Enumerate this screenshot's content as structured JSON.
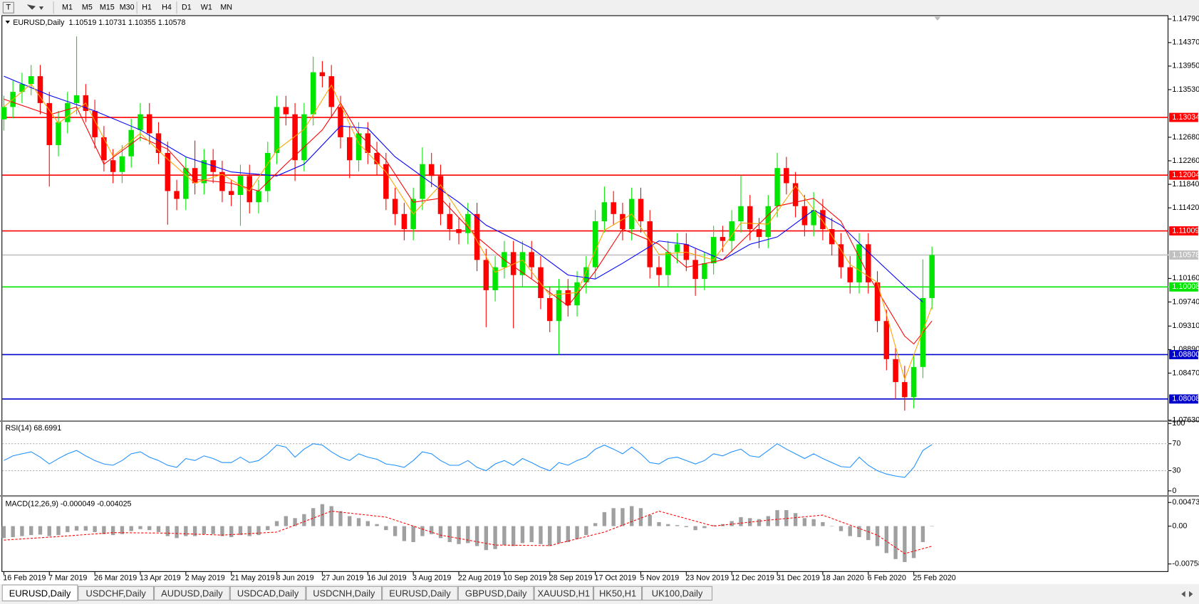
{
  "toolbar": {
    "timeframes": [
      "M1",
      "M5",
      "M15",
      "M30",
      "H1",
      "H4",
      "D1",
      "W1",
      "MN"
    ]
  },
  "tabs": [
    "EURUSD,Daily",
    "USDCHF,Daily",
    "AUDUSD,Daily",
    "USDCAD,Daily",
    "USDCNH,Daily",
    "EURUSD,Daily",
    "GBPUSD,Daily",
    "XAUUSD,H1",
    "HK50,H1",
    "UK100,Daily"
  ],
  "active_tab": 0,
  "chart_data": [
    {
      "type": "candlestick",
      "header": {
        "symbol": "EURUSD,Daily",
        "ohlc": [
          1.10519,
          1.10731,
          1.10355,
          1.10578
        ]
      },
      "categories": [
        "16 Feb 2019",
        null,
        null,
        null,
        null,
        "7 Mar 2019",
        null,
        null,
        null,
        null,
        "26 Mar 2019",
        null,
        null,
        null,
        null,
        "13 Apr 2019",
        null,
        null,
        null,
        null,
        "2 May 2019",
        null,
        null,
        null,
        null,
        "21 May 2019",
        null,
        null,
        null,
        null,
        "8 Jun 2019",
        null,
        null,
        null,
        null,
        "27 Jun 2019",
        null,
        null,
        null,
        null,
        "16 Jul 2019",
        null,
        null,
        null,
        null,
        "3 Aug 2019",
        null,
        null,
        null,
        null,
        "22 Aug 2019",
        null,
        null,
        null,
        null,
        "10 Sep 2019",
        null,
        null,
        null,
        null,
        "28 Sep 2019",
        null,
        null,
        null,
        null,
        "17 Oct 2019",
        null,
        null,
        null,
        null,
        "5 Nov 2019",
        null,
        null,
        null,
        null,
        "23 Nov 2019",
        null,
        null,
        null,
        null,
        "12 Dec 2019",
        null,
        null,
        null,
        null,
        "31 Dec 2019",
        null,
        null,
        null,
        null,
        "18 Jan 2020",
        null,
        null,
        null,
        null,
        "6 Feb 2020",
        null,
        null,
        null,
        null,
        "25 Feb 2020",
        null,
        null
      ],
      "open": [
        1.13,
        1.1322,
        1.1349,
        1.1363,
        1.1377,
        1.1329,
        1.1254,
        1.1295,
        1.1329,
        1.1343,
        1.1315,
        1.1268,
        1.1227,
        1.1206,
        1.1234,
        1.1281,
        1.1309,
        1.1275,
        1.124,
        1.1172,
        1.1158,
        1.1213,
        1.1186,
        1.1227,
        1.1206,
        1.1172,
        1.1165,
        1.1199,
        1.1152,
        1.1172,
        1.124,
        1.1322,
        1.1309,
        1.1227,
        1.1309,
        1.1384,
        1.1377,
        1.1322,
        1.1268,
        1.1227,
        1.1275,
        1.124,
        1.122,
        1.1158,
        1.1131,
        1.1104,
        1.1158,
        1.122,
        1.1199,
        1.1131,
        1.1104,
        1.1097,
        1.1131,
        1.1049,
        1.0995,
        1.1036,
        1.1063,
        1.1022,
        1.1063,
        1.1036,
        1.0981,
        1.094,
        1.0995,
        1.0968,
        1.1009,
        1.1036,
        1.1118,
        1.1152,
        1.1131,
        1.1104,
        1.1158,
        1.1118,
        1.1036,
        1.1022,
        1.1063,
        1.1077,
        1.1049,
        1.1015,
        1.1043,
        1.109,
        1.1083,
        1.1118,
        1.1145,
        1.1104,
        1.109,
        1.1145,
        1.1213,
        1.1186,
        1.1145,
        1.1111,
        1.1138,
        1.1104,
        1.1077,
        1.1036,
        1.1009,
        1.1077,
        1.1009,
        1.094,
        1.0872,
        1.0831,
        1.0804,
        1.0858,
        1.0981
      ],
      "high": [
        1.1342,
        1.1369,
        1.1383,
        1.1397,
        1.1397,
        1.1349,
        1.1315,
        1.1349,
        1.1448,
        1.1363,
        1.1335,
        1.1288,
        1.1247,
        1.1254,
        1.1301,
        1.1329,
        1.1329,
        1.1295,
        1.126,
        1.1192,
        1.1233,
        1.1262,
        1.1247,
        1.1247,
        1.1226,
        1.1192,
        1.1219,
        1.1219,
        1.1192,
        1.126,
        1.1342,
        1.1342,
        1.1329,
        1.1329,
        1.1412,
        1.1404,
        1.1397,
        1.1342,
        1.1288,
        1.1295,
        1.1295,
        1.126,
        1.124,
        1.1178,
        1.1151,
        1.1178,
        1.125,
        1.124,
        1.1219,
        1.1151,
        1.1124,
        1.1151,
        1.1151,
        1.1069,
        1.1056,
        1.1083,
        1.1083,
        1.1083,
        1.1083,
        1.1056,
        1.1001,
        1.1015,
        1.1015,
        1.1029,
        1.1056,
        1.1138,
        1.118,
        1.1172,
        1.1151,
        1.1178,
        1.1178,
        1.1138,
        1.1056,
        1.1083,
        1.1097,
        1.1097,
        1.1069,
        1.1063,
        1.111,
        1.111,
        1.1138,
        1.12,
        1.1165,
        1.1124,
        1.1165,
        1.124,
        1.1233,
        1.1206,
        1.1165,
        1.117,
        1.1158,
        1.1124,
        1.1097,
        1.1056,
        1.1097,
        1.1097,
        1.1029,
        1.096,
        1.0892,
        1.086,
        1.0878,
        1.105,
        1.1073
      ],
      "low": [
        1.128,
        1.1302,
        1.1329,
        1.1343,
        1.1309,
        1.118,
        1.1234,
        1.1275,
        1.1309,
        1.1295,
        1.1248,
        1.1207,
        1.1186,
        1.1186,
        1.1214,
        1.1261,
        1.1255,
        1.122,
        1.1112,
        1.1138,
        1.1138,
        1.1166,
        1.1166,
        1.1186,
        1.1152,
        1.1145,
        1.111,
        1.1132,
        1.1132,
        1.1152,
        1.122,
        1.1289,
        1.119,
        1.1207,
        1.1289,
        1.1357,
        1.1302,
        1.1248,
        1.1195,
        1.1207,
        1.122,
        1.12,
        1.1138,
        1.1111,
        1.1084,
        1.1084,
        1.1138,
        1.1179,
        1.1111,
        1.1084,
        1.1077,
        1.1077,
        1.1029,
        1.0929,
        1.0975,
        1.1016,
        1.0927,
        1.1002,
        1.1016,
        1.0961,
        1.092,
        1.088,
        1.0948,
        1.0948,
        1.0989,
        1.1016,
        1.1098,
        1.1111,
        1.1084,
        1.1084,
        1.1098,
        1.1016,
        1.1002,
        1.1002,
        1.1043,
        1.1029,
        1.0985,
        1.0995,
        1.1023,
        1.1063,
        1.1063,
        1.1098,
        1.1084,
        1.107,
        1.107,
        1.1125,
        1.1166,
        1.1125,
        1.1091,
        1.1091,
        1.1084,
        1.1057,
        1.1016,
        1.0989,
        1.0989,
        1.0989,
        1.092,
        1.0852,
        1.08,
        1.078,
        1.0784,
        1.0838,
        1.0961
      ],
      "close": [
        1.1322,
        1.1349,
        1.1363,
        1.1377,
        1.1329,
        1.1254,
        1.1295,
        1.1329,
        1.1343,
        1.1315,
        1.1268,
        1.1227,
        1.1206,
        1.1234,
        1.1281,
        1.1309,
        1.1275,
        1.124,
        1.1172,
        1.1158,
        1.1213,
        1.1186,
        1.1227,
        1.1206,
        1.1172,
        1.1165,
        1.1199,
        1.1152,
        1.1172,
        1.124,
        1.1322,
        1.1309,
        1.1227,
        1.1309,
        1.1384,
        1.1377,
        1.1322,
        1.1268,
        1.1227,
        1.1275,
        1.124,
        1.122,
        1.1158,
        1.1131,
        1.1104,
        1.1158,
        1.122,
        1.1199,
        1.1131,
        1.1104,
        1.1097,
        1.1131,
        1.1049,
        1.0995,
        1.1036,
        1.1063,
        1.1022,
        1.1063,
        1.1036,
        1.0981,
        1.094,
        1.0995,
        1.0968,
        1.1009,
        1.1036,
        1.1118,
        1.1152,
        1.1131,
        1.1104,
        1.1158,
        1.1118,
        1.1036,
        1.1022,
        1.1063,
        1.1077,
        1.1049,
        1.1015,
        1.1043,
        1.109,
        1.1083,
        1.1118,
        1.1145,
        1.1104,
        1.109,
        1.1145,
        1.1213,
        1.1186,
        1.1145,
        1.1111,
        1.1138,
        1.1104,
        1.1077,
        1.1036,
        1.1009,
        1.1077,
        1.1009,
        1.094,
        1.0872,
        1.0831,
        1.0804,
        1.0858,
        1.0981,
        1.10578
      ],
      "up_color": "#00e600",
      "down_color": "#ff0000",
      "ylim": [
        1.0762,
        1.1483
      ],
      "yticks": [
        {
          "value": 1.1479,
          "label": "1.14790"
        },
        {
          "value": 1.1437,
          "label": "1.14370"
        },
        {
          "value": 1.1395,
          "label": "1.13950"
        },
        {
          "value": 1.1353,
          "label": "1.13530"
        },
        {
          "value": 1.1268,
          "label": "1.12680"
        },
        {
          "value": 1.1226,
          "label": "1.12260"
        },
        {
          "value": 1.1184,
          "label": "1.11840"
        },
        {
          "value": 1.1142,
          "label": "1.11420"
        },
        {
          "value": 1.1016,
          "label": "1.10160"
        },
        {
          "value": 1.0974,
          "label": "1.09740"
        },
        {
          "value": 1.0931,
          "label": "1.09310"
        },
        {
          "value": 1.0889,
          "label": "1.08890"
        },
        {
          "value": 1.0847,
          "label": "1.08470"
        },
        {
          "value": 1.0763,
          "label": "1.07630"
        }
      ],
      "levels": [
        {
          "value": 1.13034,
          "label": "1.13034",
          "color": "#ff0000"
        },
        {
          "value": 1.12004,
          "label": "1.12004",
          "color": "#ff0000"
        },
        {
          "value": 1.11009,
          "label": "1.11009",
          "color": "#ff0000"
        },
        {
          "value": 1.10578,
          "label": "1.10578",
          "color": "#c0c0c0"
        },
        {
          "value": 1.10008,
          "label": "1.10008",
          "color": "#00e600"
        },
        {
          "value": 1.088,
          "label": "1.08800",
          "color": "#0000cc"
        },
        {
          "value": 1.08008,
          "label": "1.08008",
          "color": "#0000cc"
        }
      ],
      "moving_averages": [
        {
          "color": "#0000ff",
          "x": [
            0,
            5,
            10,
            15,
            20,
            25,
            30,
            33,
            37,
            40,
            43,
            47,
            50,
            53,
            58,
            62,
            65,
            68,
            72,
            75,
            79,
            82,
            85,
            89,
            92,
            95,
            99,
            101
          ],
          "values": [
            1.1377,
            1.1343,
            1.1315,
            1.1281,
            1.1233,
            1.1206,
            1.1199,
            1.122,
            1.1288,
            1.1284,
            1.1233,
            1.1186,
            1.1152,
            1.1111,
            1.107,
            1.1022,
            1.1015,
            1.1043,
            1.1083,
            1.1077,
            1.1049,
            1.1077,
            1.109,
            1.1138,
            1.1111,
            1.1063,
            1.1002,
            1.0974
          ]
        },
        {
          "color": "#ff0000",
          "x": [
            0,
            5,
            8,
            11,
            15,
            18,
            21,
            25,
            28,
            31,
            35,
            37,
            39,
            42,
            45,
            48,
            52,
            55,
            58,
            62,
            65,
            68,
            72,
            75,
            79,
            82,
            85,
            89,
            92,
            95,
            99,
            100,
            102
          ],
          "values": [
            1.1336,
            1.1308,
            1.1322,
            1.122,
            1.1268,
            1.1247,
            1.1193,
            1.1186,
            1.1172,
            1.122,
            1.1281,
            1.1329,
            1.1274,
            1.1227,
            1.1152,
            1.1159,
            1.109,
            1.1049,
            1.1015,
            1.0967,
            1.1029,
            1.1104,
            1.1077,
            1.1036,
            1.1049,
            1.1097,
            1.1145,
            1.1159,
            1.1118,
            1.1022,
            1.0913,
            1.0899,
            1.094
          ]
        },
        {
          "color": "#ffa500",
          "x": [
            0,
            3,
            6,
            9,
            12,
            15,
            18,
            21,
            24,
            27,
            30,
            33,
            36,
            39,
            42,
            45,
            48,
            51,
            54,
            57,
            60,
            63,
            66,
            69,
            72,
            75,
            78,
            81,
            84,
            87,
            90,
            93,
            96,
            99,
            102
          ],
          "values": [
            1.1322,
            1.1363,
            1.1293,
            1.1329,
            1.1234,
            1.1275,
            1.1229,
            1.1186,
            1.1202,
            1.1172,
            1.1245,
            1.1282,
            1.1361,
            1.1257,
            1.1206,
            1.1131,
            1.1183,
            1.1111,
            1.1027,
            1.1049,
            1.0986,
            1.0991,
            1.1102,
            1.1131,
            1.1059,
            1.1063,
            1.1049,
            1.1115,
            1.1113,
            1.1181,
            1.1118,
            1.1041,
            1.1009,
            1.0836,
            1.0966
          ]
        }
      ]
    },
    {
      "type": "line",
      "title": "RSI(14)",
      "last": 68.6991,
      "color": "#1e90ff",
      "values": [
        45,
        52,
        55,
        58,
        50,
        40,
        48,
        55,
        60,
        52,
        45,
        40,
        38,
        45,
        55,
        58,
        50,
        45,
        38,
        35,
        48,
        45,
        52,
        48,
        42,
        42,
        50,
        42,
        45,
        55,
        68,
        65,
        50,
        62,
        70,
        68,
        58,
        50,
        45,
        55,
        50,
        47,
        40,
        38,
        35,
        45,
        58,
        55,
        45,
        38,
        38,
        45,
        35,
        30,
        40,
        45,
        38,
        48,
        42,
        35,
        30,
        42,
        38,
        45,
        50,
        62,
        68,
        62,
        55,
        65,
        55,
        42,
        40,
        48,
        50,
        45,
        40,
        45,
        55,
        52,
        58,
        62,
        52,
        50,
        60,
        70,
        62,
        55,
        48,
        55,
        48,
        42,
        36,
        35,
        50,
        38,
        30,
        25,
        22,
        20,
        35,
        60,
        68.6991
      ],
      "ylim": [
        -7,
        103
      ],
      "yticks": [
        100,
        70,
        30,
        0
      ],
      "levels": [
        70,
        30
      ]
    },
    {
      "type": "macd",
      "title": "MACD(12,26,9)",
      "main_last": -4.9e-05,
      "signal_last": -0.004025,
      "color": "#a0a0a0",
      "values": [
        -0.0024,
        -0.0022,
        -0.002,
        -0.0018,
        -0.0017,
        -0.002,
        -0.0018,
        -0.0012,
        -0.0009,
        -0.0009,
        -0.0012,
        -0.0016,
        -0.0018,
        -0.0016,
        -0.001,
        -0.0006,
        -0.0008,
        -0.0012,
        -0.002,
        -0.0024,
        -0.002,
        -0.002,
        -0.0016,
        -0.0016,
        -0.002,
        -0.0022,
        -0.0018,
        -0.002,
        -0.0018,
        -0.0008,
        0.001,
        0.002,
        0.0016,
        0.0024,
        0.0036,
        0.0044,
        0.004,
        0.003,
        0.002,
        0.0016,
        0.001,
        0.0004,
        -0.0008,
        -0.002,
        -0.003,
        -0.0032,
        -0.002,
        -0.0016,
        -0.0024,
        -0.0032,
        -0.0036,
        -0.0034,
        -0.004,
        -0.0048,
        -0.0046,
        -0.0038,
        -0.004,
        -0.0034,
        -0.0032,
        -0.0036,
        -0.004,
        -0.0034,
        -0.0032,
        -0.0026,
        -0.0018,
        0.0006,
        0.0028,
        0.0036,
        0.0036,
        0.004,
        0.0036,
        0.0022,
        0.0008,
        0.0004,
        0.0002,
        -0.0002,
        -0.0008,
        -0.0004,
        0.0002,
        0.0004,
        0.001,
        0.0018,
        0.0016,
        0.0014,
        0.002,
        0.0032,
        0.0032,
        0.0026,
        0.0016,
        0.0014,
        0.0008,
        0,
        -0.001,
        -0.002,
        -0.0022,
        -0.0028,
        -0.004,
        -0.0054,
        -0.0066,
        -0.0072,
        -0.0064,
        -0.0032,
        -4.9e-05
      ],
      "signal": {
        "color": "#ff0000",
        "x": [
          0,
          6,
          12,
          18,
          24,
          30,
          36,
          42,
          48,
          54,
          60,
          66,
          72,
          78,
          84,
          90,
          96,
          99,
          102
        ],
        "values": [
          -0.0028,
          -0.0021,
          -0.0013,
          -0.0014,
          -0.0018,
          -0.0012,
          0.003,
          0.0018,
          -0.0018,
          -0.0038,
          -0.0039,
          -0.0012,
          0.003,
          0,
          0.0012,
          0.0022,
          -0.0018,
          -0.0055,
          -0.004025
        ]
      },
      "ylim": [
        -0.00872,
        0.00566
      ],
      "yticks": [
        0.004738,
        {
          "value": 0,
          "label": "0.00"
        },
        -0.007584
      ]
    }
  ]
}
